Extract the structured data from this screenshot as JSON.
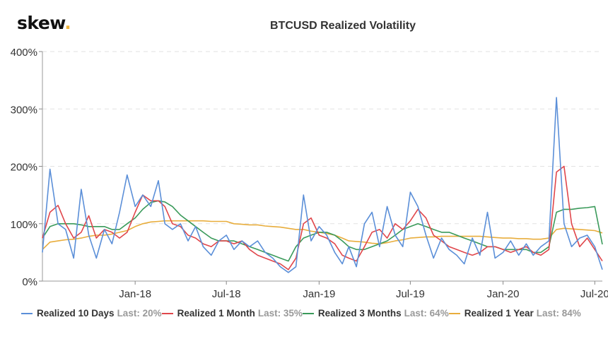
{
  "logo": {
    "text": "skew",
    "dot": "."
  },
  "chart_data": {
    "type": "line",
    "title": "BTCUSD Realized Volatility",
    "ylim": [
      0,
      400
    ],
    "yticks": [
      "0%",
      "100%",
      "200%",
      "300%",
      "400%"
    ],
    "ytick_values": [
      0,
      100,
      200,
      300,
      400
    ],
    "xticks": [
      "Jan-18",
      "Jul-18",
      "Jan-19",
      "Jul-19",
      "Jan-20",
      "Jul-20"
    ],
    "xtick_dates": [
      "2018-01-01",
      "2018-07-01",
      "2019-01-01",
      "2019-07-01",
      "2020-01-01",
      "2020-07-01"
    ],
    "xlim": [
      "2017-07-01",
      "2020-07-16"
    ],
    "grid": "horizontal dashed",
    "legend_position": "bottom",
    "start_date": "2017-07-01",
    "step": "semi-monthly",
    "series": [
      {
        "name": "Realized 10 Days",
        "last": "Last: 20%",
        "color": "#5b8fd8",
        "values": [
          50,
          195,
          100,
          90,
          40,
          160,
          80,
          40,
          90,
          65,
          120,
          185,
          130,
          150,
          130,
          175,
          100,
          90,
          100,
          70,
          95,
          60,
          45,
          70,
          80,
          55,
          70,
          60,
          70,
          50,
          40,
          25,
          15,
          25,
          150,
          70,
          95,
          80,
          50,
          30,
          60,
          25,
          100,
          120,
          60,
          130,
          80,
          60,
          155,
          130,
          80,
          40,
          75,
          55,
          45,
          30,
          75,
          45,
          120,
          40,
          50,
          70,
          45,
          65,
          45,
          60,
          70,
          320,
          100,
          60,
          75,
          80,
          60,
          20
        ]
      },
      {
        "name": "Realized 1 Month",
        "last": "Last: 35%",
        "color": "#e0464b",
        "values": [
          75,
          120,
          132,
          100,
          75,
          85,
          114,
          75,
          90,
          85,
          75,
          85,
          120,
          150,
          140,
          140,
          130,
          100,
          95,
          80,
          75,
          65,
          60,
          70,
          70,
          65,
          70,
          55,
          45,
          40,
          35,
          30,
          20,
          40,
          100,
          110,
          80,
          75,
          65,
          45,
          40,
          35,
          60,
          85,
          90,
          75,
          100,
          90,
          105,
          125,
          110,
          80,
          70,
          60,
          55,
          50,
          45,
          50,
          60,
          60,
          55,
          50,
          55,
          60,
          50,
          45,
          55,
          190,
          200,
          100,
          60,
          75,
          55,
          35
        ]
      },
      {
        "name": "Realized 3 Months",
        "last": "Last: 64%",
        "color": "#3a9a5a",
        "values": [
          75,
          95,
          100,
          100,
          100,
          98,
          95,
          95,
          95,
          90,
          90,
          100,
          110,
          125,
          137,
          140,
          138,
          130,
          115,
          105,
          95,
          85,
          75,
          70,
          70,
          70,
          65,
          60,
          55,
          50,
          45,
          40,
          35,
          60,
          75,
          80,
          85,
          85,
          80,
          70,
          60,
          55,
          55,
          60,
          65,
          70,
          80,
          90,
          95,
          100,
          95,
          90,
          85,
          85,
          80,
          75,
          70,
          65,
          60,
          60,
          55,
          55,
          55,
          55,
          50,
          50,
          60,
          120,
          125,
          125,
          127,
          128,
          130,
          64
        ]
      },
      {
        "name": "Realized 1 Year",
        "last": "Last: 84%",
        "color": "#e8ad3c",
        "values": [
          55,
          68,
          70,
          72,
          73,
          75,
          78,
          80,
          80,
          82,
          85,
          88,
          95,
          100,
          103,
          104,
          105,
          105,
          105,
          105,
          105,
          105,
          104,
          104,
          104,
          100,
          99,
          98,
          98,
          96,
          95,
          94,
          92,
          90,
          90,
          87,
          85,
          83,
          80,
          75,
          70,
          69,
          68,
          66,
          65,
          67,
          70,
          72,
          75,
          76,
          77,
          77,
          78,
          78,
          78,
          78,
          78,
          78,
          77,
          76,
          75,
          75,
          74,
          74,
          73,
          73,
          75,
          90,
          92,
          91,
          90,
          89,
          88,
          84
        ]
      }
    ]
  }
}
